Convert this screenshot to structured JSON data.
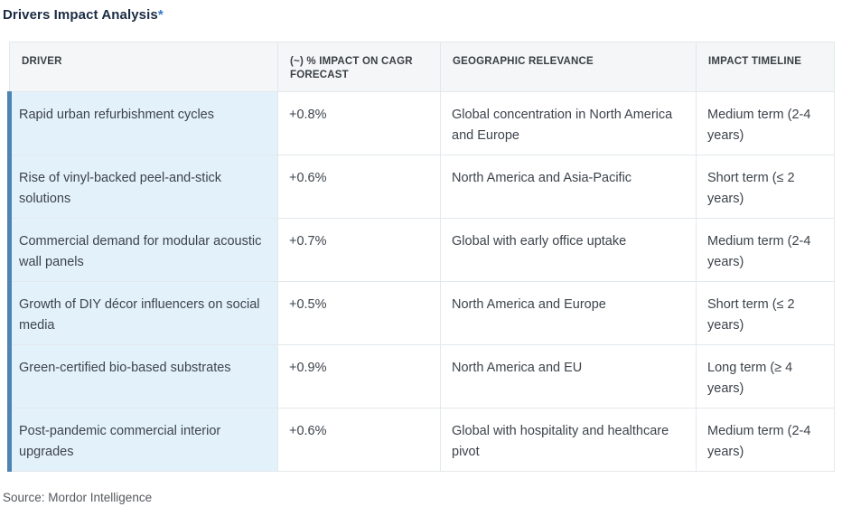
{
  "page": {
    "title": "Drivers Impact Analysis",
    "title_asterisk": "*",
    "source": "Source: Mordor Intelligence"
  },
  "colors": {
    "accent_strip": "#4e84b2",
    "driver_cell_bg": "#e3f1fb",
    "header_bg": "#f4f6f8",
    "title_navy": "#1b2b44",
    "asterisk_blue": "#3878c7",
    "border": "#e3e8ec"
  },
  "table": {
    "columns": [
      "DRIVER",
      "(~) % IMPACT ON CAGR FORECAST",
      "GEOGRAPHIC RELEVANCE",
      "IMPACT TIMELINE"
    ],
    "rows": [
      {
        "driver": "Rapid urban refurbishment cycles",
        "impact": "+0.8%",
        "geo": "Global concentration in North America and Europe",
        "timeline": "Medium term (2-4 years)"
      },
      {
        "driver": "Rise of vinyl-backed peel-and-stick solutions",
        "impact": "+0.6%",
        "geo": "North America and Asia-Pacific",
        "timeline": "Short term (≤ 2 years)"
      },
      {
        "driver": "Commercial demand for modular acoustic wall panels",
        "impact": "+0.7%",
        "geo": "Global with early office uptake",
        "timeline": "Medium term (2-4 years)"
      },
      {
        "driver": "Growth of DIY décor influencers on social media",
        "impact": "+0.5%",
        "geo": "North America and Europe",
        "timeline": "Short term (≤ 2 years)"
      },
      {
        "driver": "Green-certified bio-based substrates",
        "impact": "+0.9%",
        "geo": "North America and EU",
        "timeline": "Long term (≥ 4 years)"
      },
      {
        "driver": "Post-pandemic commercial interior upgrades",
        "impact": "+0.6%",
        "geo": "Global with hospitality and healthcare pivot",
        "timeline": "Medium term (2-4 years)"
      }
    ]
  },
  "chart_data": {
    "type": "table",
    "title": "Drivers Impact Analysis*",
    "columns": [
      "DRIVER",
      "(~) % IMPACT ON CAGR FORECAST",
      "GEOGRAPHIC RELEVANCE",
      "IMPACT TIMELINE"
    ],
    "rows": [
      [
        "Rapid urban refurbishment cycles",
        "+0.8%",
        "Global concentration in North America and Europe",
        "Medium term (2-4 years)"
      ],
      [
        "Rise of vinyl-backed peel-and-stick solutions",
        "+0.6%",
        "North America and Asia-Pacific",
        "Short term (≤ 2 years)"
      ],
      [
        "Commercial demand for modular acoustic wall panels",
        "+0.7%",
        "Global with early office uptake",
        "Medium term (2-4 years)"
      ],
      [
        "Growth of DIY décor influencers on social media",
        "+0.5%",
        "North America and Europe",
        "Short term (≤ 2 years)"
      ],
      [
        "Green-certified bio-based substrates",
        "+0.9%",
        "North America and EU",
        "Long term (≥ 4 years)"
      ],
      [
        "Post-pandemic commercial interior upgrades",
        "+0.6%",
        "Global with hospitality and healthcare pivot",
        "Medium term (2-4 years)"
      ]
    ],
    "source": "Source: Mordor Intelligence",
    "impact_values_numeric_pct": [
      0.8,
      0.6,
      0.7,
      0.5,
      0.9,
      0.6
    ]
  }
}
